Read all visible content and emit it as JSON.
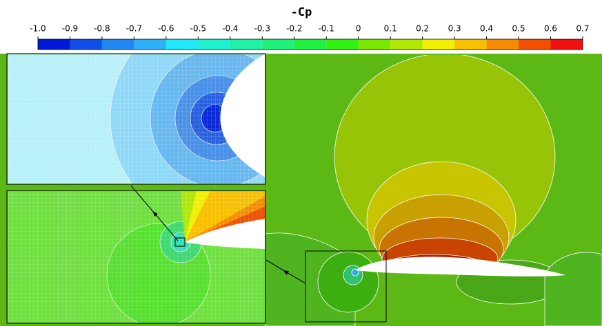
{
  "chart_data": {
    "type": "contour",
    "title": "-Cp",
    "xlim": [
      -1.0,
      0.7
    ],
    "xticks": [
      {
        "value": -1.0,
        "label": "-1.0"
      },
      -0.9,
      -0.8,
      -0.7,
      -0.6,
      -0.5,
      -0.4,
      -0.3,
      -0.2,
      -0.1,
      0,
      0.1,
      0.2,
      0.3,
      0.4,
      0.5,
      0.6,
      0.7
    ],
    "colors": [
      "#0018d8",
      "#1050e8",
      "#2088f0",
      "#30b0f8",
      "#20e8f8",
      "#20f0d0",
      "#20f0a8",
      "#20f078",
      "#20f040",
      "#30f010",
      "#78e800",
      "#b0e800",
      "#f0f000",
      "#f8c000",
      "#f88c00",
      "#f05000",
      "#f01010"
    ]
  }
}
